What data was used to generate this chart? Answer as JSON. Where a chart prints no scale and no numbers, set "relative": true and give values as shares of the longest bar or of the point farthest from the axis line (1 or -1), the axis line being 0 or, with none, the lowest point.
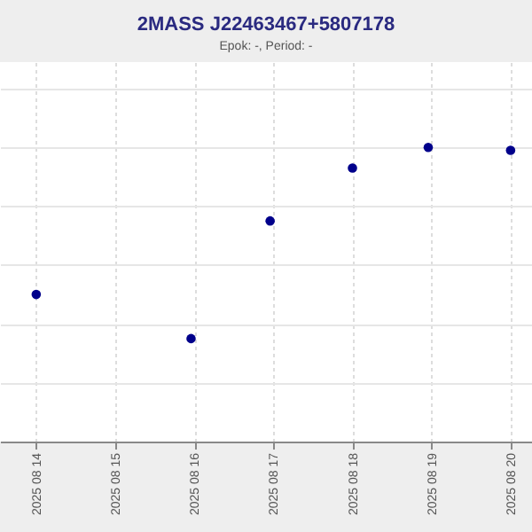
{
  "chart_data": {
    "type": "scatter",
    "title": "2MASS J22463467+5807178",
    "subtitle": "Epok: -, Period: -",
    "x": [
      "2025-08-14T00:00",
      "2025-08-15T23:00",
      "2025-08-16T23:00",
      "2025-08-18T00:00",
      "2025-08-18T23:00",
      "2025-08-20T00:00"
    ],
    "series": [
      {
        "color": "#00008b",
        "values": [
          0.5,
          0.35,
          0.75,
          0.93,
          1,
          0.99
        ]
      }
    ],
    "relative": true,
    "xlim": [
      "2025-08-13T13:00",
      "2025-08-20T06:30"
    ],
    "xticks": [
      {
        "value": "2025-08-14",
        "label": "2025 08 14"
      },
      {
        "value": "2025-08-15",
        "label": "2025 08 15"
      },
      {
        "value": "2025-08-16",
        "label": "2025 08 16"
      },
      {
        "value": "2025-08-17",
        "label": "2025 08 17"
      },
      {
        "value": "2025-08-18",
        "label": "2025 08 18"
      },
      {
        "value": "2025-08-19",
        "label": "2025 08 19"
      },
      {
        "value": "2025-08-20",
        "label": "2025 08 20"
      }
    ],
    "grid": true,
    "marker": "circle",
    "legend": false
  }
}
